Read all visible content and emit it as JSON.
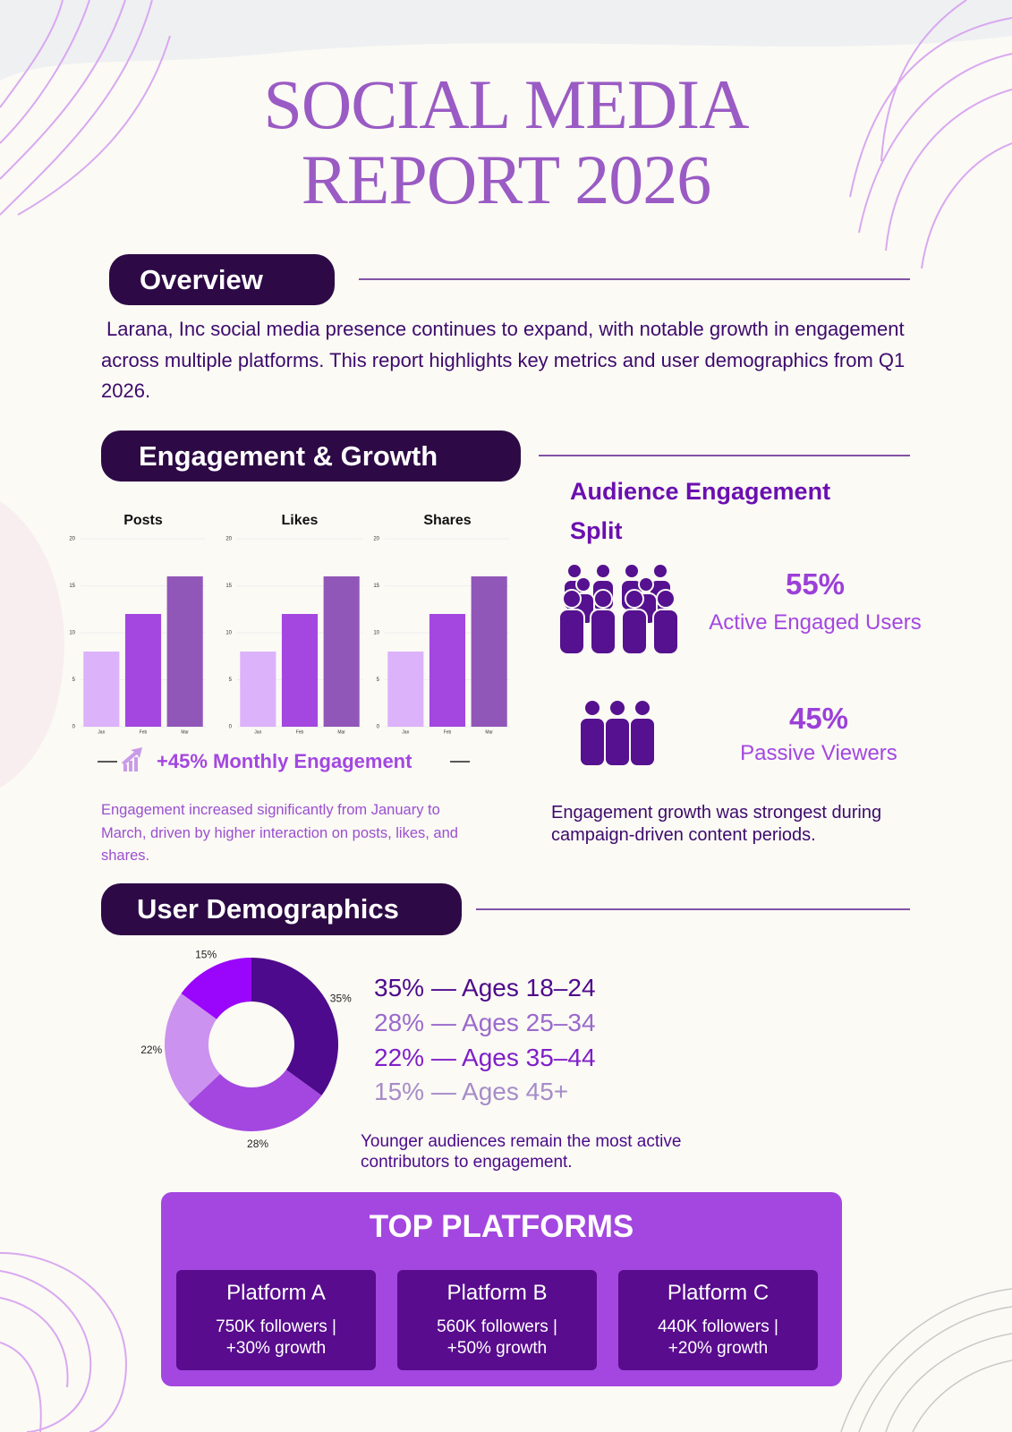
{
  "header": {
    "title_lines": [
      "SOCIAL MEDIA",
      "REPORT 2026"
    ]
  },
  "overview": {
    "heading": "Overview",
    "text": "Larana, Inc social media presence continues to expand, with notable growth in engagement across multiple platforms. This report highlights key metrics and user demographics from Q1 2026."
  },
  "engagement": {
    "heading": "Engagement & Growth",
    "callout": "+45% Monthly Engagement",
    "note": "Engagement increased significantly from January to March, driven by higher interaction on posts, likes, and shares."
  },
  "audience": {
    "heading": "Audience Engagement Split",
    "items": [
      {
        "percent": "55%",
        "label": "Active Engaged Users"
      },
      {
        "percent": "45%",
        "label": "Passive Viewers"
      }
    ],
    "note": "Engagement growth was strongest during campaign-driven content periods."
  },
  "demographics": {
    "heading": "User Demographics",
    "legend": [
      "35% — Ages 18–24",
      "28% — Ages 25–34",
      "22% — Ages 35–44",
      "15% — Ages 45+"
    ],
    "note": "Younger audiences remain the most active contributors to engagement."
  },
  "platforms": {
    "heading": "TOP PLATFORMS",
    "cards": [
      {
        "name": "Platform A",
        "stats": [
          "750K followers |",
          "+30% growth"
        ]
      },
      {
        "name": "Platform B",
        "stats": [
          "560K followers |",
          "+50% growth"
        ]
      },
      {
        "name": "Platform C",
        "stats": [
          "440K followers |",
          "+20% growth"
        ]
      }
    ]
  },
  "chart_data": [
    {
      "type": "bar",
      "title": "Posts",
      "categories": [
        "Jan",
        "Feb",
        "Mar"
      ],
      "values": [
        8,
        12,
        16
      ],
      "colors": [
        "#dcb2fa",
        "#a347e0",
        "#9157b8"
      ],
      "ylim": [
        0,
        20
      ],
      "yticks": [
        0,
        5,
        10,
        15,
        20
      ],
      "grid": true
    },
    {
      "type": "bar",
      "title": "Likes",
      "categories": [
        "Jan",
        "Feb",
        "Mar"
      ],
      "values": [
        8,
        12,
        16
      ],
      "colors": [
        "#dcb2fa",
        "#a347e0",
        "#9157b8"
      ],
      "ylim": [
        0,
        20
      ],
      "yticks": [
        0,
        5,
        10,
        15,
        20
      ],
      "grid": true
    },
    {
      "type": "bar",
      "title": "Shares",
      "categories": [
        "Jan",
        "Feb",
        "Mar"
      ],
      "values": [
        8,
        12,
        16
      ],
      "colors": [
        "#dcb2fa",
        "#a347e0",
        "#9157b8"
      ],
      "ylim": [
        0,
        20
      ],
      "yticks": [
        0,
        5,
        10,
        15,
        20
      ],
      "grid": true
    },
    {
      "type": "donut",
      "values": [
        35,
        28,
        22,
        15
      ],
      "value_labels": [
        "35%",
        "28%",
        "22%",
        "15%"
      ],
      "colors": [
        "#4e0a8c",
        "#a347e0",
        "#cc92ef",
        "#9a05fb"
      ]
    }
  ]
}
